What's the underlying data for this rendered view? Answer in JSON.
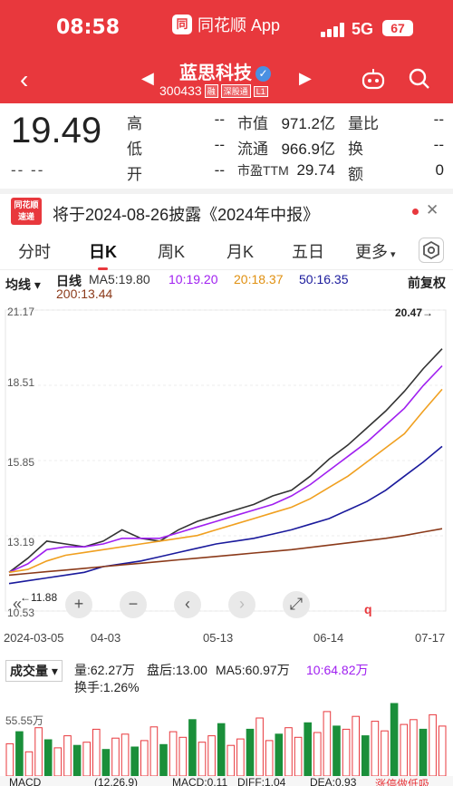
{
  "status_bar": {
    "time": "08:58",
    "app_name": "同花顺 App",
    "network": "5G",
    "battery": "67"
  },
  "nav": {
    "stock_name": "蓝思科技",
    "code": "300433",
    "code_tags": [
      "融",
      "深股通",
      "L1"
    ]
  },
  "quote": {
    "price": "19.49",
    "change": "-- --",
    "fields": [
      {
        "label": "高",
        "value": "--"
      },
      {
        "label": "市值",
        "value": "971.2亿"
      },
      {
        "label": "量比",
        "value": "--"
      },
      {
        "label": "低",
        "value": "--"
      },
      {
        "label": "流通",
        "value": "966.9亿"
      },
      {
        "label": "换",
        "value": "--"
      },
      {
        "label": "开",
        "value": "--"
      },
      {
        "label": "市盈TTM",
        "value": "29.74"
      },
      {
        "label": "额",
        "value": "0"
      }
    ]
  },
  "notice": {
    "badge_top": "同花顺",
    "badge_bottom": "速递",
    "text": "将于2024-08-26披露《2024年中报》"
  },
  "tabs": [
    "分时",
    "日K",
    "周K",
    "月K",
    "五日",
    "更多"
  ],
  "active_tab": "日K",
  "ma_legend": {
    "indicator": "均线",
    "period": "日线",
    "ma5": "MA5:19.80",
    "ma10": "10:19.20",
    "ma20": "20:18.37",
    "ma50": "50:16.35",
    "ma200": "200:13.44",
    "adjust": "前复权"
  },
  "colors": {
    "up": "#e8383d",
    "down": "#1a8f3a",
    "ma5": "#333333",
    "ma10": "#a020f0",
    "ma20": "#f0a020",
    "ma50": "#1a1a9c",
    "ma200": "#8b3a1a"
  },
  "chart_data": {
    "type": "line",
    "y_labels": [
      "21.17",
      "18.51",
      "15.85",
      "13.19",
      "10.53"
    ],
    "ylim": [
      10.53,
      21.17
    ],
    "x_labels": [
      "2024-03-05",
      "04-03",
      "05-13",
      "06-14",
      "07-17"
    ],
    "high_annotation": "20.47→",
    "low_annotation": "←11.88",
    "marker": "q",
    "series": [
      {
        "name": "MA5",
        "values": [
          11.9,
          12.4,
          13.0,
          12.9,
          12.8,
          13.0,
          13.4,
          13.1,
          13.0,
          13.4,
          13.7,
          13.9,
          14.1,
          14.3,
          14.6,
          14.8,
          15.3,
          15.9,
          16.4,
          17.0,
          17.6,
          18.3,
          19.1,
          19.8
        ]
      },
      {
        "name": "MA10",
        "values": [
          11.9,
          12.2,
          12.7,
          12.8,
          12.8,
          12.9,
          13.1,
          13.1,
          13.1,
          13.3,
          13.5,
          13.7,
          13.9,
          14.1,
          14.3,
          14.6,
          15.0,
          15.5,
          16.0,
          16.5,
          17.1,
          17.7,
          18.5,
          19.2
        ]
      },
      {
        "name": "MA20",
        "values": [
          11.9,
          12.0,
          12.3,
          12.5,
          12.6,
          12.7,
          12.8,
          12.9,
          13.0,
          13.1,
          13.2,
          13.4,
          13.6,
          13.8,
          14.0,
          14.2,
          14.5,
          14.9,
          15.3,
          15.8,
          16.3,
          16.8,
          17.6,
          18.37
        ]
      },
      {
        "name": "MA50",
        "values": [
          11.5,
          11.6,
          11.7,
          11.8,
          11.9,
          12.1,
          12.2,
          12.3,
          12.45,
          12.6,
          12.75,
          12.9,
          13.0,
          13.1,
          13.25,
          13.4,
          13.6,
          13.8,
          14.1,
          14.4,
          14.8,
          15.3,
          15.8,
          16.35
        ]
      },
      {
        "name": "MA200",
        "values": [
          11.8,
          11.86,
          11.92,
          11.98,
          12.04,
          12.1,
          12.16,
          12.22,
          12.28,
          12.34,
          12.4,
          12.46,
          12.52,
          12.58,
          12.64,
          12.7,
          12.78,
          12.86,
          12.94,
          13.02,
          13.1,
          13.2,
          13.32,
          13.44
        ]
      }
    ]
  },
  "controls": [
    "«",
    "+",
    "−",
    "‹",
    "›",
    "⤢"
  ],
  "volume": {
    "selector": "成交量",
    "vol": "量:62.27万",
    "after_hours": "盘后:13.00",
    "ma5": "MA5:60.97万",
    "ma10": "10:64.82万",
    "turnover": "换手:1.26%",
    "axis_label": "55.55万",
    "values": [
      40,
      55,
      30,
      60,
      45,
      35,
      50,
      38,
      42,
      58,
      33,
      47,
      52,
      36,
      44,
      61,
      39,
      55,
      48,
      70,
      42,
      50,
      65,
      38,
      46,
      58,
      72,
      44,
      52,
      60,
      48,
      66,
      54,
      80,
      62,
      58,
      74,
      50,
      68,
      56,
      90,
      64,
      70,
      58,
      76,
      62
    ]
  },
  "macd": {
    "label": "MACD",
    "params": "(12,26,9)",
    "macd": "MACD:0.11",
    "diff": "DIFF:1.04",
    "dea": "DEA:0.93",
    "hint": "涨停做低吸"
  }
}
